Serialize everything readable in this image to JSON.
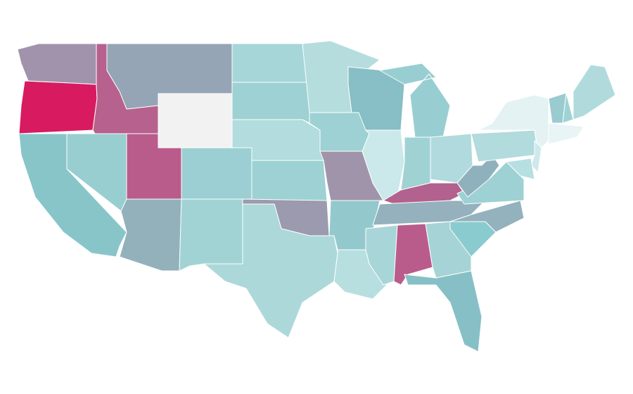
{
  "map": {
    "border_color": "#ffffff",
    "fills": [
      "#a093ab",
      "#d81b60",
      "#b7618e",
      "#95a5b5",
      "#f2f2f3",
      "#88c5c9",
      "#98ced0",
      "#b95c8c",
      "#92b1bb",
      "#9bcfd3",
      "#a1d3d5",
      "#a7d6d8",
      "#9dd1d3",
      "#b2dcdd",
      "#9dd1d3",
      "#9c9aae",
      "#acd8da",
      "#b5dddd",
      "#9dd1d3",
      "#a094aa",
      "#93c9cd",
      "#b7dfe0",
      "#88bec5",
      "#cbe8ea",
      "#98ced2",
      "#a0d2d4",
      "#b0dadd",
      "#b3618e",
      "#94b1bd",
      "#a8d6d8",
      "#b95c8c",
      "#a6d4d6",
      "#86c0c6",
      "#8acbcf",
      "#93b2bd",
      "#9dd1d3",
      "#8fb1bd",
      "#b1dbdd",
      "#e4f2f4",
      "#cfe9eb",
      "#b6dfe1",
      "#99cbcf",
      "#9ed3d5",
      "#b1dadd",
      "#e8f4f5"
    ]
  }
}
